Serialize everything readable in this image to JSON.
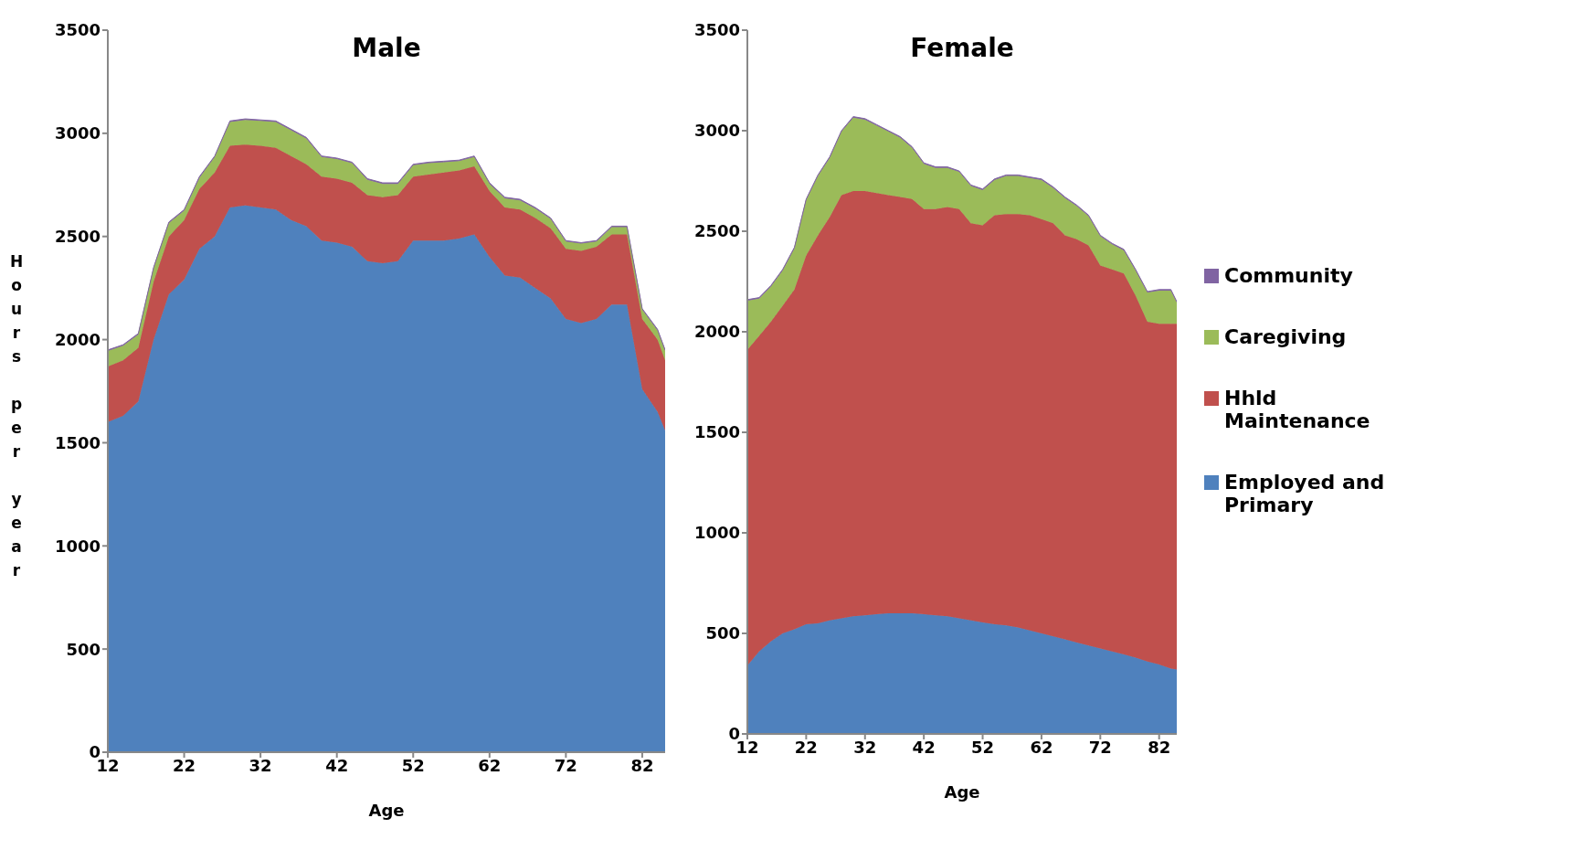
{
  "chart_data": [
    {
      "type": "area",
      "title": "Male",
      "xlabel": "Age",
      "ylabel": "Hours per year",
      "stacked": true,
      "legend": false,
      "grid": false,
      "x": [
        12,
        14,
        16,
        18,
        20,
        22,
        24,
        26,
        28,
        30,
        32,
        34,
        36,
        38,
        40,
        42,
        44,
        46,
        48,
        50,
        52,
        54,
        56,
        58,
        60,
        62,
        64,
        66,
        68,
        70,
        72,
        74,
        76,
        78,
        80,
        82,
        84,
        85
      ],
      "xlim": [
        12,
        85
      ],
      "xticks": [
        12,
        22,
        32,
        42,
        52,
        62,
        72,
        82
      ],
      "ylim": [
        0,
        3500
      ],
      "yticks": [
        0,
        500,
        1000,
        1500,
        2000,
        2500,
        3000,
        3500
      ],
      "series": [
        {
          "color": "#4f81bd",
          "values": [
            1600,
            1630,
            1700,
            2000,
            2220,
            2290,
            2440,
            2500,
            2640,
            2650,
            2640,
            2630,
            2580,
            2550,
            2480,
            2470,
            2450,
            2380,
            2370,
            2380,
            2480,
            2480,
            2480,
            2490,
            2510,
            2400,
            2310,
            2300,
            2250,
            2200,
            2100,
            2080,
            2100,
            2170,
            2170,
            1760,
            1650,
            1560
          ]
        },
        {
          "color": "#c0504d",
          "values": [
            270,
            270,
            260,
            280,
            280,
            290,
            290,
            310,
            300,
            295,
            300,
            300,
            310,
            300,
            310,
            310,
            310,
            320,
            320,
            320,
            310,
            320,
            330,
            330,
            330,
            320,
            330,
            330,
            340,
            340,
            340,
            350,
            350,
            340,
            340,
            340,
            350,
            340
          ]
        },
        {
          "color": "#9bbb59",
          "values": [
            75,
            70,
            65,
            65,
            65,
            45,
            55,
            75,
            115,
            120,
            120,
            125,
            125,
            125,
            95,
            95,
            95,
            75,
            65,
            55,
            55,
            55,
            50,
            45,
            45,
            35,
            45,
            45,
            45,
            45,
            35,
            35,
            25,
            35,
            35,
            45,
            45,
            45
          ]
        },
        {
          "color": "#8064a2",
          "values": [
            5,
            5,
            5,
            5,
            5,
            5,
            5,
            5,
            5,
            5,
            5,
            5,
            5,
            5,
            5,
            5,
            5,
            5,
            5,
            5,
            5,
            5,
            5,
            5,
            5,
            5,
            5,
            5,
            5,
            5,
            5,
            5,
            5,
            5,
            5,
            5,
            5,
            5
          ]
        }
      ]
    },
    {
      "type": "area",
      "title": "Female",
      "xlabel": "Age",
      "stacked": true,
      "legend": "right",
      "grid": false,
      "x": [
        12,
        14,
        16,
        18,
        20,
        22,
        24,
        26,
        28,
        30,
        32,
        34,
        36,
        38,
        40,
        42,
        44,
        46,
        48,
        50,
        52,
        54,
        56,
        58,
        60,
        62,
        64,
        66,
        68,
        70,
        72,
        74,
        76,
        78,
        80,
        82,
        84,
        85
      ],
      "xlim": [
        12,
        85
      ],
      "xticks": [
        12,
        22,
        32,
        42,
        52,
        62,
        72,
        82
      ],
      "ylim": [
        0,
        3500
      ],
      "yticks": [
        0,
        500,
        1000,
        1500,
        2000,
        2500,
        3000,
        3500
      ],
      "series": [
        {
          "name": "Employed and Primary",
          "color": "#4f81bd",
          "values": [
            340,
            410,
            460,
            500,
            520,
            545,
            550,
            565,
            575,
            585,
            590,
            595,
            600,
            600,
            600,
            595,
            590,
            585,
            575,
            565,
            555,
            545,
            540,
            530,
            515,
            500,
            485,
            470,
            455,
            440,
            425,
            410,
            395,
            380,
            360,
            345,
            325,
            320
          ]
        },
        {
          "name": "Hhld Maintenance",
          "color": "#c0504d",
          "values": [
            1570,
            1570,
            1590,
            1630,
            1690,
            1835,
            1930,
            2005,
            2105,
            2115,
            2110,
            2095,
            2080,
            2070,
            2060,
            2015,
            2020,
            2035,
            2035,
            1975,
            1975,
            2035,
            2045,
            2055,
            2065,
            2060,
            2055,
            2010,
            2005,
            1990,
            1905,
            1900,
            1895,
            1800,
            1690,
            1695,
            1715,
            1720
          ]
        },
        {
          "name": "Caregiving",
          "color": "#9bbb59",
          "values": [
            245,
            185,
            175,
            175,
            205,
            275,
            295,
            295,
            315,
            365,
            355,
            335,
            315,
            295,
            255,
            225,
            205,
            195,
            185,
            185,
            175,
            175,
            190,
            190,
            185,
            195,
            175,
            185,
            165,
            145,
            145,
            125,
            115,
            125,
            145,
            165,
            165,
            105
          ]
        },
        {
          "name": "Community",
          "color": "#8064a2",
          "values": [
            5,
            5,
            5,
            5,
            5,
            5,
            5,
            5,
            5,
            5,
            5,
            5,
            5,
            5,
            5,
            5,
            5,
            5,
            5,
            5,
            5,
            5,
            5,
            5,
            5,
            5,
            5,
            5,
            5,
            5,
            5,
            5,
            5,
            5,
            5,
            5,
            5,
            5
          ]
        }
      ]
    }
  ]
}
